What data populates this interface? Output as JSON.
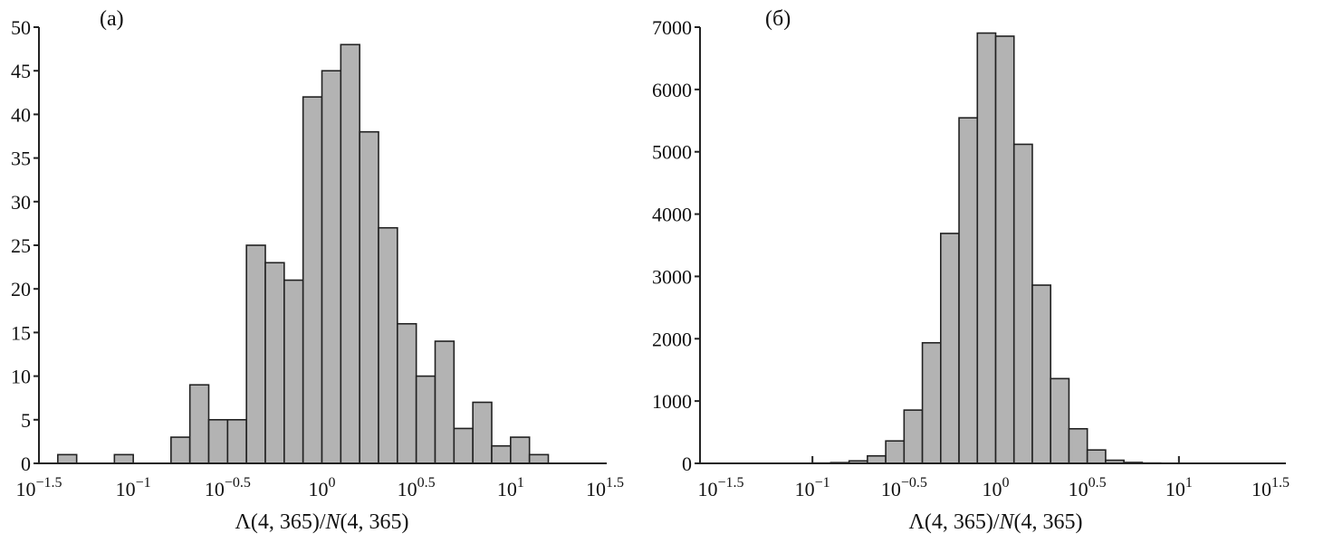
{
  "chart_data": [
    {
      "type": "bar",
      "panel_label": "(a)",
      "xlabel_parts": [
        "Λ(4, 365)/",
        "N",
        "(4, 365)"
      ],
      "x_scale": "log10",
      "xlim_log10": [
        -1.5,
        1.5
      ],
      "bin_width_log10": 0.1,
      "ylim": [
        0,
        50
      ],
      "yticks": [
        0,
        5,
        10,
        15,
        20,
        25,
        30,
        35,
        40,
        45,
        50
      ],
      "xticks": [
        {
          "base": "10",
          "exp": "−1.5"
        },
        {
          "base": "10",
          "exp": "−1"
        },
        {
          "base": "10",
          "exp": "−0.5"
        },
        {
          "base": "10",
          "exp": "0"
        },
        {
          "base": "10",
          "exp": "0.5"
        },
        {
          "base": "10",
          "exp": "1"
        },
        {
          "base": "10",
          "exp": "1.5"
        }
      ],
      "bins_left_edge_log10": [
        -1.4,
        -1.1,
        -0.8,
        -0.7,
        -0.6,
        -0.5,
        -0.4,
        -0.3,
        -0.2,
        -0.1,
        0.0,
        0.1,
        0.2,
        0.3,
        0.4,
        0.5,
        0.6,
        0.7,
        0.8,
        0.9,
        1.0,
        1.1
      ],
      "values": [
        1,
        1,
        3,
        9,
        5,
        5,
        25,
        23,
        21,
        42,
        45,
        48,
        38,
        27,
        16,
        10,
        14,
        4,
        7,
        2,
        3,
        1
      ],
      "bar_color": "#b3b3b3"
    },
    {
      "type": "bar",
      "panel_label": "(б)",
      "xlabel_parts": [
        "Λ(4, 365)/",
        "N",
        "(4, 365)"
      ],
      "x_scale": "log10",
      "xlim_log10": [
        -1.5,
        1.5
      ],
      "bin_width_log10": 0.1,
      "ylim": [
        0,
        7000
      ],
      "yticks": [
        0,
        1000,
        2000,
        3000,
        4000,
        5000,
        6000,
        7000
      ],
      "xticks": [
        {
          "base": "10",
          "exp": "−1.5"
        },
        {
          "base": "10",
          "exp": "−1"
        },
        {
          "base": "10",
          "exp": "−0.5"
        },
        {
          "base": "10",
          "exp": "0"
        },
        {
          "base": "10",
          "exp": "0.5"
        },
        {
          "base": "10",
          "exp": "1"
        },
        {
          "base": "10",
          "exp": "1.5"
        }
      ],
      "bins_left_edge_log10": [
        -1.1,
        -1.0,
        -0.9,
        -0.8,
        -0.7,
        -0.6,
        -0.5,
        -0.4,
        -0.3,
        -0.2,
        -0.1,
        0.0,
        0.1,
        0.2,
        0.3,
        0.4,
        0.5,
        0.6,
        0.7,
        0.8,
        0.9
      ],
      "values": [
        3,
        5,
        12,
        40,
        120,
        360,
        855,
        1935,
        3690,
        5545,
        6905,
        6855,
        5120,
        2860,
        1360,
        555,
        215,
        50,
        15,
        5,
        3
      ],
      "bar_color": "#b3b3b3"
    }
  ]
}
